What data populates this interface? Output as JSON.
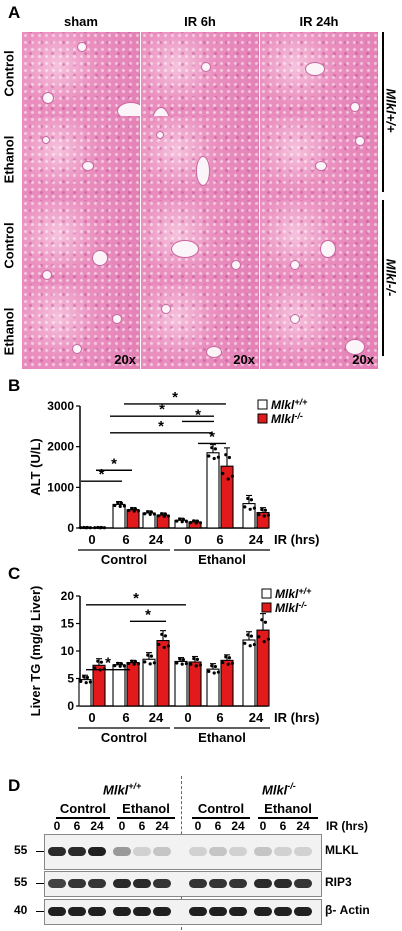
{
  "panelA": {
    "letter": "A",
    "columns": [
      "sham",
      "IR 6h",
      "IR 24h"
    ],
    "rows": [
      "Control",
      "Ethanol",
      "Control",
      "Ethanol"
    ],
    "genotype_top": "Mlkl+/+",
    "genotype_bottom": "Mlkl-/-",
    "magnification": "20x"
  },
  "panelB": {
    "letter": "B",
    "legend": [
      "Mlkl+/+",
      "Mlkl-/-"
    ],
    "ir_label": "IR (hrs)",
    "groups": [
      "Control",
      "Ethanol"
    ],
    "star": "*"
  },
  "panelC": {
    "letter": "C",
    "legend": [
      "Mlkl+/+",
      "Mlkl-/-"
    ],
    "ir_label": "IR (hrs)",
    "groups": [
      "Control",
      "Ethanol"
    ],
    "star": "*"
  },
  "panelD": {
    "letter": "D",
    "genotypes": [
      "Mlkl+/+",
      "Mlkl-/-"
    ],
    "groups": [
      "Control",
      "Ethanol",
      "Control",
      "Ethanol"
    ],
    "ir_label": "IR (hrs)",
    "lanes": [
      "0",
      "6",
      "24",
      "0",
      "6",
      "24",
      "0",
      "6",
      "24",
      "0",
      "6",
      "24"
    ],
    "markers": [
      "55",
      "55",
      "40"
    ],
    "proteins": [
      "MLKL",
      "RIP3",
      "β- Actin"
    ]
  },
  "colors": {
    "wt": "#ffffff",
    "ko": "#e31a1c",
    "stroke": "#000000"
  },
  "chart_data": [
    {
      "type": "bar",
      "ylabel": "ALT (U/L)",
      "xlabel": "IR (hrs)",
      "ylim": [
        0,
        3000
      ],
      "yticks": [
        0,
        1000,
        2000,
        3000
      ],
      "categories": [
        "0",
        "6",
        "24",
        "0",
        "6",
        "24"
      ],
      "groups": [
        "Control",
        "Control",
        "Control",
        "Ethanol",
        "Ethanol",
        "Ethanol"
      ],
      "series": [
        {
          "name": "Mlkl+/+",
          "values": [
            10,
            580,
            370,
            190,
            1850,
            600
          ],
          "errors": [
            5,
            70,
            50,
            50,
            200,
            200
          ]
        },
        {
          "name": "Mlkl-/-",
          "values": [
            10,
            450,
            320,
            150,
            1520,
            380
          ],
          "errors": [
            5,
            50,
            50,
            40,
            450,
            120
          ]
        }
      ]
    },
    {
      "type": "bar",
      "ylabel": "Liver TG (mg/g Liver)",
      "xlabel": "IR (hrs)",
      "ylim": [
        0,
        20
      ],
      "yticks": [
        0,
        5,
        10,
        15,
        20
      ],
      "categories": [
        "0",
        "6",
        "24",
        "0",
        "6",
        "24"
      ],
      "groups": [
        "Control",
        "Control",
        "Control",
        "Ethanol",
        "Ethanol",
        "Ethanol"
      ],
      "series": [
        {
          "name": "Mlkl+/+",
          "values": [
            4.8,
            7.5,
            8.5,
            8.1,
            6.7,
            12.0
          ],
          "errors": [
            0.8,
            0.4,
            1.2,
            0.7,
            1.0,
            1.5
          ]
        },
        {
          "name": "Mlkl-/-",
          "values": [
            7.4,
            7.9,
            11.9,
            8.0,
            8.3,
            13.8
          ],
          "errors": [
            1.2,
            0.4,
            1.8,
            1.0,
            1.0,
            3.0
          ]
        }
      ]
    }
  ]
}
